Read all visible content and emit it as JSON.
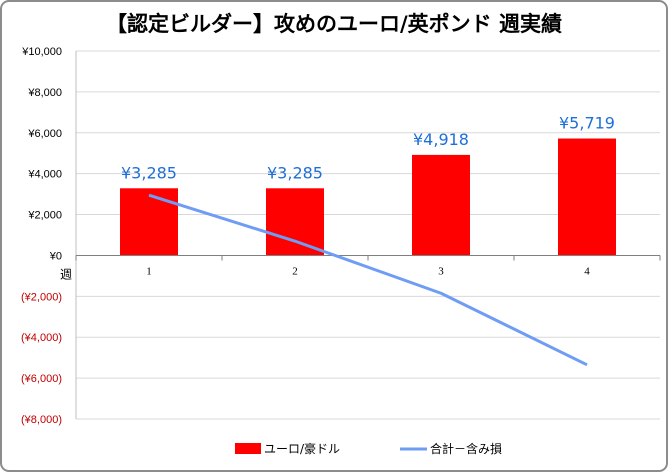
{
  "chart_data": {
    "type": "bar",
    "title": "【認定ビルダー】攻めのユーロ/英ポンド 週実績",
    "xlabel": "週",
    "ylabel": "",
    "categories": [
      "1",
      "2",
      "3",
      "4"
    ],
    "ylim": [
      -8000,
      10000
    ],
    "y_ticks": [
      10000,
      8000,
      6000,
      4000,
      2000,
      0,
      -2000,
      -4000,
      -6000,
      -8000
    ],
    "y_tick_labels": [
      "¥10,000",
      "¥8,000",
      "¥6,000",
      "¥4,000",
      "¥2,000",
      "¥0",
      "(¥2,000)",
      "(¥4,000)",
      "(¥6,000)",
      "(¥8,000)"
    ],
    "grid": true,
    "legend_position": "bottom",
    "series": [
      {
        "name": "ユーロ/豪ドル",
        "type": "bar",
        "color": "#ff0000",
        "values": [
          3285,
          3285,
          4918,
          5719
        ],
        "data_labels": [
          "¥3,285",
          "¥3,285",
          "¥4,918",
          "¥5,719"
        ],
        "data_label_color": "#1f6fd8"
      },
      {
        "name": "合計－含み損",
        "type": "line",
        "color": "#6f9cf5",
        "values": [
          2950,
          700,
          -1850,
          -5350
        ]
      }
    ],
    "negative_tick_color": "#c00000",
    "tick_color": "#000000"
  }
}
